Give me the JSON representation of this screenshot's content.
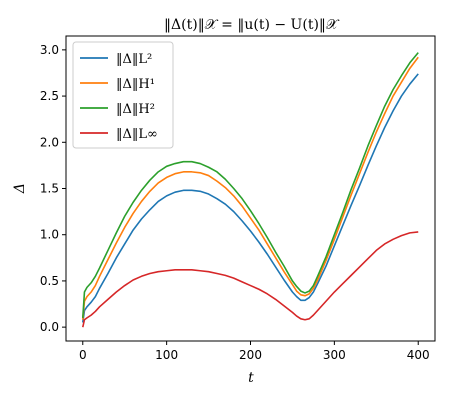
{
  "chart_data": {
    "type": "line",
    "title": "‖Δ(t)‖𝒳 = ‖u(t) − U(t)‖𝒳",
    "xlabel": "t",
    "ylabel": "Δ",
    "xlim": [
      -20,
      420
    ],
    "ylim": [
      -0.15,
      3.15
    ],
    "xticks": [
      0,
      100,
      200,
      300,
      400
    ],
    "yticks": [
      0.0,
      0.5,
      1.0,
      1.5,
      2.0,
      2.5,
      3.0
    ],
    "xtick_labels": [
      "0",
      "100",
      "200",
      "300",
      "400"
    ],
    "ytick_labels": [
      "0.0",
      "0.5",
      "1.0",
      "1.5",
      "2.0",
      "2.5",
      "3.0"
    ],
    "grid": false,
    "legend_position": "top-left",
    "series": [
      {
        "name": "‖Δ‖L²",
        "color": "#1f77b4",
        "x": [
          0,
          2,
          5,
          10,
          15,
          20,
          30,
          40,
          50,
          60,
          70,
          80,
          90,
          100,
          110,
          120,
          130,
          140,
          150,
          160,
          170,
          180,
          190,
          200,
          210,
          220,
          230,
          240,
          250,
          255,
          260,
          265,
          270,
          275,
          280,
          290,
          300,
          310,
          320,
          330,
          340,
          350,
          360,
          370,
          380,
          390,
          400
        ],
        "y": [
          0.05,
          0.18,
          0.22,
          0.27,
          0.33,
          0.42,
          0.58,
          0.75,
          0.9,
          1.05,
          1.17,
          1.27,
          1.36,
          1.42,
          1.46,
          1.48,
          1.48,
          1.47,
          1.44,
          1.39,
          1.33,
          1.25,
          1.15,
          1.04,
          0.92,
          0.79,
          0.65,
          0.51,
          0.38,
          0.33,
          0.29,
          0.29,
          0.32,
          0.38,
          0.47,
          0.66,
          0.88,
          1.1,
          1.32,
          1.53,
          1.75,
          1.96,
          2.16,
          2.34,
          2.5,
          2.63,
          2.74
        ]
      },
      {
        "name": "‖Δ‖H¹",
        "color": "#ff7f0e",
        "x": [
          0,
          2,
          5,
          10,
          15,
          20,
          30,
          40,
          50,
          60,
          70,
          80,
          90,
          100,
          110,
          120,
          130,
          140,
          150,
          160,
          170,
          180,
          190,
          200,
          210,
          220,
          230,
          240,
          250,
          255,
          260,
          265,
          270,
          275,
          280,
          290,
          300,
          310,
          320,
          330,
          340,
          350,
          360,
          370,
          380,
          390,
          400
        ],
        "y": [
          0.08,
          0.28,
          0.33,
          0.38,
          0.45,
          0.55,
          0.73,
          0.91,
          1.08,
          1.23,
          1.36,
          1.47,
          1.56,
          1.62,
          1.66,
          1.68,
          1.68,
          1.67,
          1.64,
          1.58,
          1.51,
          1.42,
          1.31,
          1.18,
          1.05,
          0.9,
          0.75,
          0.6,
          0.46,
          0.39,
          0.35,
          0.34,
          0.36,
          0.42,
          0.51,
          0.72,
          0.95,
          1.19,
          1.43,
          1.66,
          1.89,
          2.11,
          2.31,
          2.5,
          2.65,
          2.8,
          2.92
        ]
      },
      {
        "name": "‖Δ‖H²",
        "color": "#2ca02c",
        "x": [
          0,
          2,
          5,
          10,
          15,
          20,
          30,
          40,
          50,
          60,
          70,
          80,
          90,
          100,
          110,
          120,
          130,
          140,
          150,
          160,
          170,
          180,
          190,
          200,
          210,
          220,
          230,
          240,
          250,
          255,
          260,
          265,
          270,
          275,
          280,
          290,
          300,
          310,
          320,
          330,
          340,
          350,
          360,
          370,
          380,
          390,
          400
        ],
        "y": [
          0.1,
          0.38,
          0.43,
          0.48,
          0.55,
          0.64,
          0.83,
          1.02,
          1.2,
          1.35,
          1.48,
          1.59,
          1.68,
          1.74,
          1.77,
          1.79,
          1.79,
          1.77,
          1.73,
          1.68,
          1.6,
          1.5,
          1.39,
          1.26,
          1.12,
          0.97,
          0.81,
          0.66,
          0.5,
          0.44,
          0.39,
          0.37,
          0.39,
          0.45,
          0.55,
          0.76,
          1.0,
          1.24,
          1.49,
          1.72,
          1.96,
          2.18,
          2.39,
          2.57,
          2.72,
          2.86,
          2.97
        ]
      },
      {
        "name": "‖Δ‖L∞",
        "color": "#d62728",
        "x": [
          0,
          2,
          5,
          10,
          15,
          20,
          30,
          40,
          50,
          60,
          70,
          80,
          90,
          100,
          110,
          120,
          130,
          140,
          150,
          160,
          170,
          180,
          190,
          200,
          210,
          220,
          230,
          240,
          250,
          255,
          260,
          265,
          270,
          275,
          280,
          290,
          300,
          310,
          320,
          330,
          340,
          350,
          360,
          370,
          380,
          390,
          400
        ],
        "y": [
          0.0,
          0.08,
          0.1,
          0.13,
          0.17,
          0.22,
          0.3,
          0.38,
          0.45,
          0.51,
          0.55,
          0.58,
          0.6,
          0.61,
          0.62,
          0.62,
          0.62,
          0.61,
          0.6,
          0.58,
          0.56,
          0.53,
          0.49,
          0.45,
          0.41,
          0.36,
          0.3,
          0.23,
          0.16,
          0.12,
          0.09,
          0.08,
          0.09,
          0.13,
          0.18,
          0.28,
          0.38,
          0.47,
          0.56,
          0.65,
          0.74,
          0.83,
          0.9,
          0.95,
          0.99,
          1.02,
          1.03
        ]
      }
    ]
  }
}
